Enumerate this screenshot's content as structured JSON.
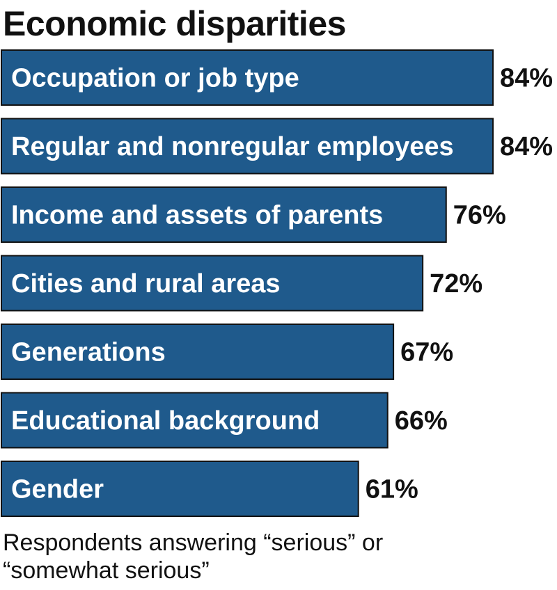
{
  "colors": {
    "bar": "#1f5a8c",
    "bar_text": "#ffffff",
    "value_text": "#111111"
  },
  "chart_data": {
    "type": "bar",
    "orientation": "horizontal",
    "title": "Economic disparities",
    "categories": [
      "Occupation or job type",
      "Regular and nonregular employees",
      "Income and assets of parents",
      "Cities and rural areas",
      "Generations",
      "Educational background",
      "Gender"
    ],
    "values": [
      84,
      84,
      76,
      72,
      67,
      66,
      61
    ],
    "value_labels": [
      "84%",
      "84%",
      "76%",
      "72%",
      "67%",
      "66%",
      "61%"
    ],
    "note_lines": [
      "Respondents answering “serious” or",
      "“somewhat serious”"
    ],
    "xlim": [
      0,
      100
    ],
    "grid": false,
    "legend": "none"
  }
}
